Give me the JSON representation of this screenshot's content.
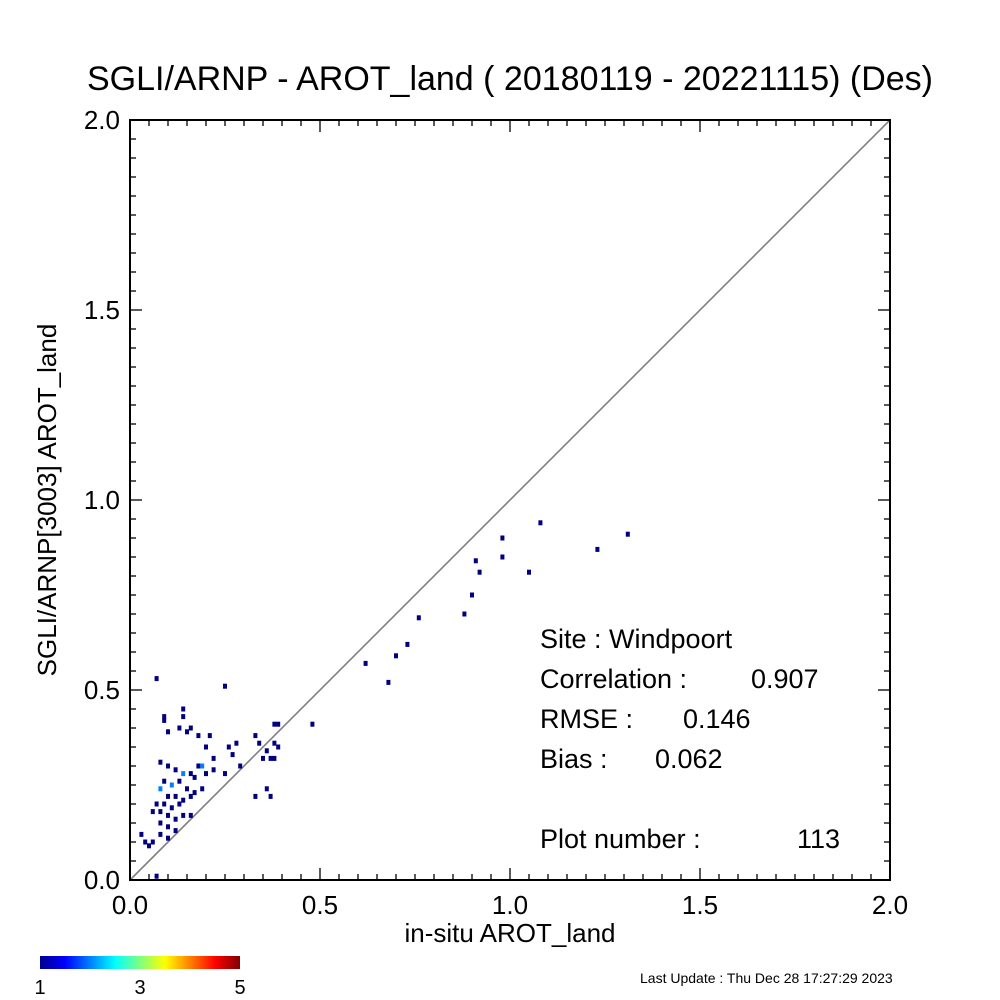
{
  "chart_data": {
    "type": "scatter",
    "title": "SGLI/ARNP - AROT_land ( 20180119 - 20221115) (Des)",
    "xlabel": "in-situ AROT_land",
    "ylabel": "SGLI/ARNP[3003]    AROT_land",
    "xlim": [
      0.0,
      2.0
    ],
    "ylim": [
      0.0,
      2.0
    ],
    "xticks": [
      "0.0",
      "0.5",
      "1.0",
      "1.5",
      "2.0"
    ],
    "yticks": [
      "0.0",
      "0.5",
      "1.0",
      "1.5",
      "2.0"
    ],
    "reference_line": "1:1",
    "stats": {
      "site_label": "Site : Windpoort",
      "correlation_label": "Correlation :",
      "correlation": "0.907",
      "rmse_label": "RMSE :",
      "rmse": "0.146",
      "bias_label": "Bias :",
      "bias": "0.062",
      "plot_number_label": "Plot number :",
      "plot_number": "113"
    },
    "colorbar": {
      "colormap": "jet",
      "min_label": "1",
      "mid_label": "3",
      "max_label": "5",
      "min": 1,
      "max": 5
    },
    "points": [
      [
        0.07,
        0.53,
        1
      ],
      [
        0.25,
        0.51,
        1
      ],
      [
        0.09,
        0.43,
        1
      ],
      [
        0.09,
        0.42,
        1
      ],
      [
        0.14,
        0.45,
        1
      ],
      [
        0.14,
        0.43,
        1
      ],
      [
        0.13,
        0.4,
        1
      ],
      [
        0.15,
        0.39,
        1
      ],
      [
        0.16,
        0.4,
        1
      ],
      [
        0.1,
        0.39,
        1
      ],
      [
        0.18,
        0.38,
        1
      ],
      [
        0.21,
        0.38,
        1
      ],
      [
        0.2,
        0.35,
        1
      ],
      [
        0.26,
        0.35,
        1
      ],
      [
        0.28,
        0.36,
        1
      ],
      [
        0.22,
        0.32,
        1
      ],
      [
        0.27,
        0.33,
        1
      ],
      [
        0.08,
        0.31,
        1
      ],
      [
        0.1,
        0.3,
        1
      ],
      [
        0.12,
        0.29,
        1
      ],
      [
        0.14,
        0.28,
        2
      ],
      [
        0.16,
        0.28,
        1
      ],
      [
        0.17,
        0.27,
        1
      ],
      [
        0.18,
        0.3,
        1
      ],
      [
        0.19,
        0.3,
        2
      ],
      [
        0.2,
        0.28,
        1
      ],
      [
        0.22,
        0.29,
        1
      ],
      [
        0.25,
        0.28,
        1
      ],
      [
        0.29,
        0.3,
        1
      ],
      [
        0.09,
        0.26,
        1
      ],
      [
        0.11,
        0.25,
        2
      ],
      [
        0.13,
        0.26,
        1
      ],
      [
        0.15,
        0.24,
        1
      ],
      [
        0.17,
        0.23,
        1
      ],
      [
        0.19,
        0.24,
        1
      ],
      [
        0.08,
        0.24,
        2
      ],
      [
        0.1,
        0.22,
        1
      ],
      [
        0.12,
        0.22,
        1
      ],
      [
        0.14,
        0.21,
        1
      ],
      [
        0.16,
        0.22,
        1
      ],
      [
        0.09,
        0.2,
        1
      ],
      [
        0.11,
        0.19,
        1
      ],
      [
        0.13,
        0.2,
        1
      ],
      [
        0.07,
        0.2,
        1
      ],
      [
        0.06,
        0.18,
        1
      ],
      [
        0.08,
        0.18,
        1
      ],
      [
        0.1,
        0.17,
        1
      ],
      [
        0.12,
        0.16,
        1
      ],
      [
        0.14,
        0.17,
        1
      ],
      [
        0.08,
        0.15,
        1
      ],
      [
        0.1,
        0.14,
        1
      ],
      [
        0.12,
        0.13,
        1
      ],
      [
        0.08,
        0.12,
        1
      ],
      [
        0.1,
        0.11,
        1
      ],
      [
        0.06,
        0.1,
        1
      ],
      [
        0.04,
        0.1,
        1
      ],
      [
        0.03,
        0.12,
        1
      ],
      [
        0.05,
        0.09,
        1
      ],
      [
        0.07,
        0.01,
        1
      ],
      [
        0.16,
        0.17,
        1
      ],
      [
        0.33,
        0.38,
        1
      ],
      [
        0.34,
        0.36,
        1
      ],
      [
        0.35,
        0.32,
        1
      ],
      [
        0.37,
        0.32,
        1
      ],
      [
        0.36,
        0.34,
        1
      ],
      [
        0.38,
        0.41,
        1
      ],
      [
        0.39,
        0.41,
        1
      ],
      [
        0.38,
        0.36,
        1
      ],
      [
        0.39,
        0.35,
        1
      ],
      [
        0.38,
        0.32,
        1
      ],
      [
        0.36,
        0.24,
        1
      ],
      [
        0.37,
        0.22,
        1
      ],
      [
        0.33,
        0.22,
        1
      ],
      [
        0.48,
        0.41,
        1
      ],
      [
        0.62,
        0.57,
        1
      ],
      [
        0.68,
        0.52,
        1
      ],
      [
        0.7,
        0.59,
        1
      ],
      [
        0.73,
        0.62,
        1
      ],
      [
        0.76,
        0.69,
        1
      ],
      [
        0.88,
        0.7,
        1
      ],
      [
        0.9,
        0.75,
        1
      ],
      [
        0.91,
        0.84,
        1
      ],
      [
        0.92,
        0.81,
        1
      ],
      [
        0.98,
        0.9,
        1
      ],
      [
        0.98,
        0.85,
        1
      ],
      [
        1.05,
        0.81,
        1
      ],
      [
        1.08,
        0.94,
        1
      ],
      [
        1.23,
        0.87,
        1
      ],
      [
        1.31,
        0.91,
        1
      ]
    ]
  },
  "footer": {
    "last_update": "Last Update : Thu Dec 28 17:27:29 2023"
  }
}
